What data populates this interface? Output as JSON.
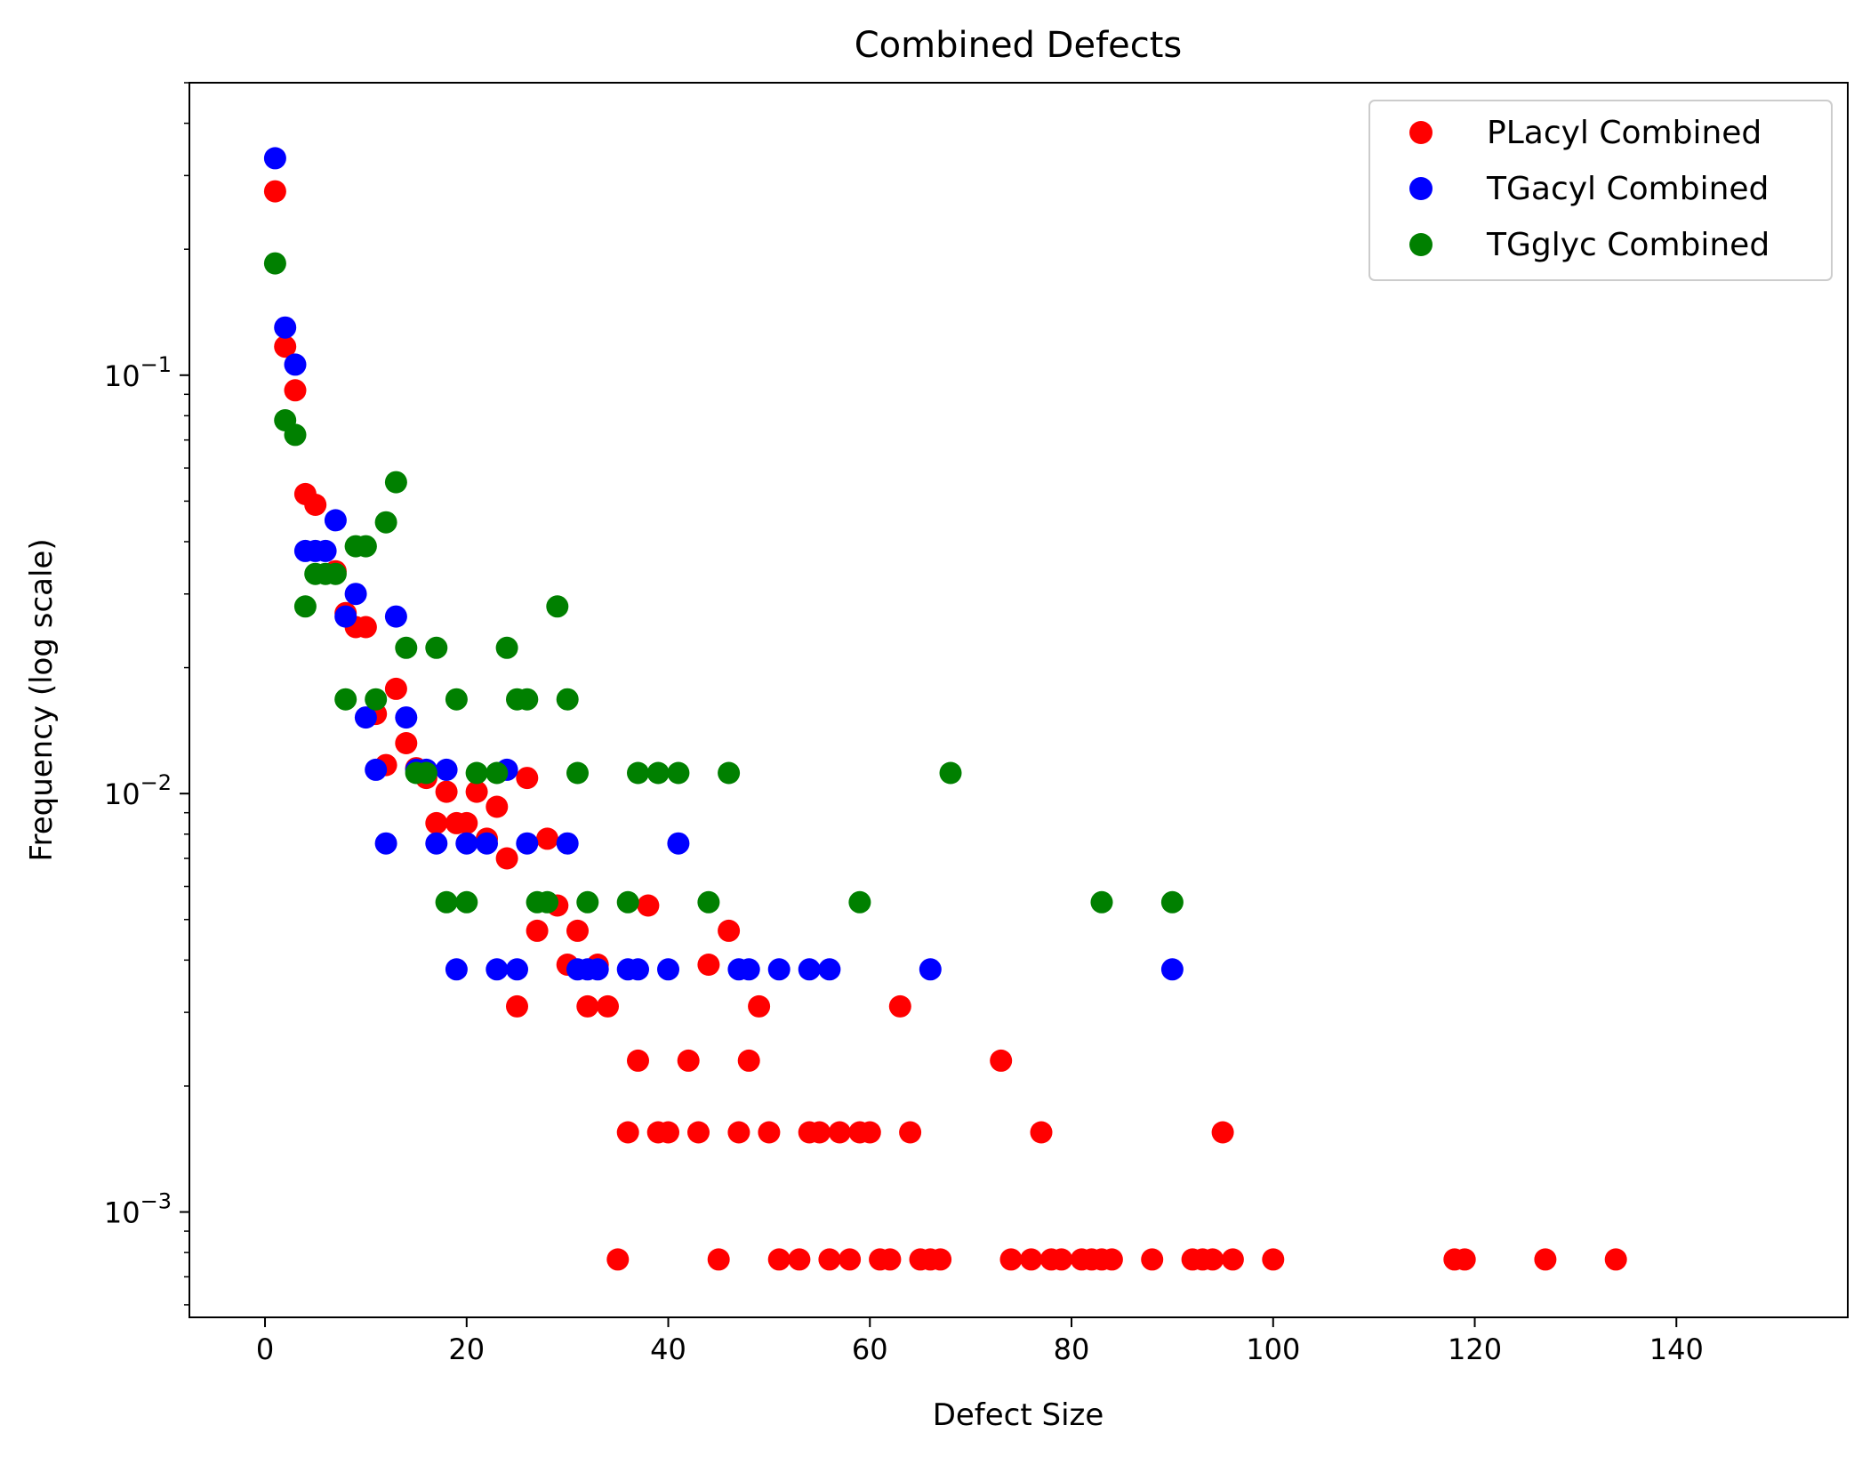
{
  "chart_data": {
    "type": "scatter",
    "title": "Combined Defects",
    "xlabel": "Defect Size",
    "ylabel": "Frequency (log scale)",
    "xlim": [
      -7.5,
      157
    ],
    "ylim": [
      0.00056,
      0.5
    ],
    "yscale": "log",
    "grid": false,
    "legend_position": "top-right",
    "x_ticks": [
      {
        "value": 0,
        "label": "0"
      },
      {
        "value": 20,
        "label": "20"
      },
      {
        "value": 40,
        "label": "40"
      },
      {
        "value": 60,
        "label": "60"
      },
      {
        "value": 80,
        "label": "80"
      },
      {
        "value": 100,
        "label": "100"
      },
      {
        "value": 120,
        "label": "120"
      },
      {
        "value": 140,
        "label": "140"
      }
    ],
    "y_ticks": [
      {
        "value": 0.1,
        "base": "10",
        "exp": "−1"
      },
      {
        "value": 0.01,
        "base": "10",
        "exp": "−2"
      },
      {
        "value": 0.001,
        "base": "10",
        "exp": "−3"
      }
    ],
    "series": [
      {
        "name": "PLacyl Combined",
        "color": "#ff0000",
        "points": [
          [
            1,
            0.275
          ],
          [
            2,
            0.117
          ],
          [
            3,
            0.092
          ],
          [
            4,
            0.052
          ],
          [
            5,
            0.049
          ],
          [
            7,
            0.034
          ],
          [
            8,
            0.027
          ],
          [
            9,
            0.025
          ],
          [
            10,
            0.025
          ],
          [
            11,
            0.0155
          ],
          [
            12,
            0.0117
          ],
          [
            13,
            0.0178
          ],
          [
            14,
            0.0132
          ],
          [
            15,
            0.0115
          ],
          [
            16,
            0.0109
          ],
          [
            17,
            0.0085
          ],
          [
            18,
            0.0101
          ],
          [
            19,
            0.0085
          ],
          [
            20,
            0.0085
          ],
          [
            21,
            0.0101
          ],
          [
            22,
            0.0078
          ],
          [
            23,
            0.0093
          ],
          [
            24,
            0.007
          ],
          [
            25,
            0.0031
          ],
          [
            26,
            0.0109
          ],
          [
            27,
            0.0047
          ],
          [
            28,
            0.0078
          ],
          [
            29,
            0.0054
          ],
          [
            30,
            0.0039
          ],
          [
            31,
            0.0047
          ],
          [
            32,
            0.0031
          ],
          [
            33,
            0.0039
          ],
          [
            34,
            0.0031
          ],
          [
            35,
            0.00077
          ],
          [
            36,
            0.00155
          ],
          [
            37,
            0.0023
          ],
          [
            38,
            0.0054
          ],
          [
            39,
            0.00155
          ],
          [
            40,
            0.00155
          ],
          [
            42,
            0.0023
          ],
          [
            43,
            0.00155
          ],
          [
            44,
            0.0039
          ],
          [
            45,
            0.00077
          ],
          [
            46,
            0.0047
          ],
          [
            47,
            0.00155
          ],
          [
            48,
            0.0023
          ],
          [
            49,
            0.0031
          ],
          [
            50,
            0.00155
          ],
          [
            51,
            0.00077
          ],
          [
            53,
            0.00077
          ],
          [
            54,
            0.00155
          ],
          [
            55,
            0.00155
          ],
          [
            56,
            0.00077
          ],
          [
            57,
            0.00155
          ],
          [
            58,
            0.00077
          ],
          [
            59,
            0.00155
          ],
          [
            60,
            0.00155
          ],
          [
            61,
            0.00077
          ],
          [
            62,
            0.00077
          ],
          [
            63,
            0.0031
          ],
          [
            64,
            0.00155
          ],
          [
            65,
            0.00077
          ],
          [
            66,
            0.00077
          ],
          [
            67,
            0.00077
          ],
          [
            73,
            0.0023
          ],
          [
            74,
            0.00077
          ],
          [
            76,
            0.00077
          ],
          [
            77,
            0.00155
          ],
          [
            78,
            0.00077
          ],
          [
            79,
            0.00077
          ],
          [
            81,
            0.00077
          ],
          [
            82,
            0.00077
          ],
          [
            83,
            0.00077
          ],
          [
            84,
            0.00077
          ],
          [
            88,
            0.00077
          ],
          [
            92,
            0.00077
          ],
          [
            93,
            0.00077
          ],
          [
            94,
            0.00077
          ],
          [
            95,
            0.00155
          ],
          [
            96,
            0.00077
          ],
          [
            100,
            0.00077
          ],
          [
            118,
            0.00077
          ],
          [
            119,
            0.00077
          ],
          [
            127,
            0.00077
          ],
          [
            134,
            0.00077
          ]
        ]
      },
      {
        "name": "TGacyl Combined",
        "color": "#0000ff",
        "points": [
          [
            1,
            0.33
          ],
          [
            2,
            0.13
          ],
          [
            3,
            0.106
          ],
          [
            4,
            0.038
          ],
          [
            5,
            0.038
          ],
          [
            6,
            0.038
          ],
          [
            7,
            0.045
          ],
          [
            8,
            0.0265
          ],
          [
            9,
            0.03
          ],
          [
            10,
            0.0152
          ],
          [
            11,
            0.0114
          ],
          [
            12,
            0.0076
          ],
          [
            13,
            0.0265
          ],
          [
            14,
            0.0152
          ],
          [
            15,
            0.0114
          ],
          [
            16,
            0.0114
          ],
          [
            17,
            0.0076
          ],
          [
            18,
            0.0114
          ],
          [
            19,
            0.0038
          ],
          [
            20,
            0.0076
          ],
          [
            22,
            0.0076
          ],
          [
            23,
            0.0038
          ],
          [
            24,
            0.0114
          ],
          [
            25,
            0.0038
          ],
          [
            26,
            0.0076
          ],
          [
            30,
            0.0076
          ],
          [
            31,
            0.0038
          ],
          [
            32,
            0.0038
          ],
          [
            33,
            0.0038
          ],
          [
            36,
            0.0038
          ],
          [
            37,
            0.0038
          ],
          [
            40,
            0.0038
          ],
          [
            41,
            0.0076
          ],
          [
            47,
            0.0038
          ],
          [
            48,
            0.0038
          ],
          [
            51,
            0.0038
          ],
          [
            54,
            0.0038
          ],
          [
            56,
            0.0038
          ],
          [
            66,
            0.0038
          ],
          [
            90,
            0.0038
          ]
        ]
      },
      {
        "name": "TGglyc Combined",
        "color": "#008000",
        "points": [
          [
            1,
            0.185
          ],
          [
            2,
            0.078
          ],
          [
            3,
            0.072
          ],
          [
            4,
            0.028
          ],
          [
            5,
            0.0335
          ],
          [
            6,
            0.0335
          ],
          [
            7,
            0.0335
          ],
          [
            8,
            0.0168
          ],
          [
            9,
            0.039
          ],
          [
            10,
            0.039
          ],
          [
            11,
            0.0168
          ],
          [
            12,
            0.0445
          ],
          [
            13,
            0.0555
          ],
          [
            14,
            0.0223
          ],
          [
            15,
            0.0112
          ],
          [
            16,
            0.0112
          ],
          [
            17,
            0.0223
          ],
          [
            18,
            0.0055
          ],
          [
            19,
            0.0168
          ],
          [
            20,
            0.0055
          ],
          [
            21,
            0.0112
          ],
          [
            23,
            0.0112
          ],
          [
            24,
            0.0223
          ],
          [
            25,
            0.0168
          ],
          [
            26,
            0.0168
          ],
          [
            27,
            0.0055
          ],
          [
            28,
            0.0055
          ],
          [
            29,
            0.028
          ],
          [
            30,
            0.0168
          ],
          [
            31,
            0.0112
          ],
          [
            32,
            0.0055
          ],
          [
            36,
            0.0055
          ],
          [
            37,
            0.0112
          ],
          [
            39,
            0.0112
          ],
          [
            41,
            0.0112
          ],
          [
            44,
            0.0055
          ],
          [
            46,
            0.0112
          ],
          [
            59,
            0.0055
          ],
          [
            68,
            0.0112
          ],
          [
            83,
            0.0055
          ],
          [
            90,
            0.0055
          ]
        ]
      }
    ]
  }
}
